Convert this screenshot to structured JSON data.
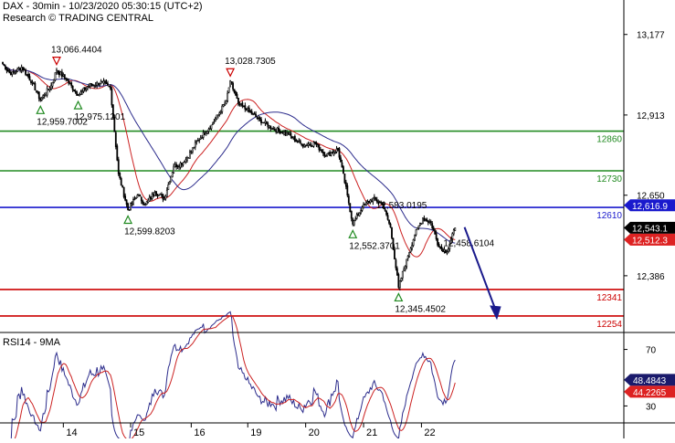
{
  "header": {
    "title": "DAX - 30min - 10/23/2020 05:30:15 (UTC+2)",
    "source": "Research © TRADING CENTRAL"
  },
  "chart_data": [
    {
      "type": "candlestick",
      "title": "DAX - 30min - 10/23/2020 05:30:15 (UTC+2)",
      "ylim": [
        12200,
        13290
      ],
      "y_ticks": [
        "13,177",
        "12,913",
        "12,650",
        "12,386"
      ],
      "x_ticks": [
        "14",
        "15",
        "16",
        "19",
        "20",
        "21",
        "22"
      ],
      "levels": [
        {
          "label": "12860",
          "value": 12860,
          "color": "#228b22"
        },
        {
          "label": "12730",
          "value": 12730,
          "color": "#228b22"
        },
        {
          "label": "12610",
          "value": 12610,
          "color": "#1a1acd"
        },
        {
          "label": "12341",
          "value": 12341,
          "color": "#cc0000"
        },
        {
          "label": "12254",
          "value": 12254,
          "color": "#cc0000"
        }
      ],
      "price_tags": [
        {
          "label": "12,616.9",
          "value": 12616.9,
          "bg": "#1a1acd",
          "fg": "#ffffff"
        },
        {
          "label": "12,543.1",
          "value": 12543.1,
          "bg": "#000000",
          "fg": "#ffffff"
        },
        {
          "label": "12,512.3",
          "value": 12512.3,
          "bg": "#dd2222",
          "fg": "#ffffff"
        }
      ],
      "annotations": [
        {
          "text": "13,066.4404",
          "i": 40,
          "value": 13066.4404,
          "marker": "down"
        },
        {
          "text": "12,959.7002",
          "i": 28,
          "value": 12959.7002,
          "marker": "up"
        },
        {
          "text": "12,975.1201",
          "i": 56,
          "value": 12975.1201,
          "marker": "up"
        },
        {
          "text": "13,028.7305",
          "i": 169,
          "value": 13028.7305,
          "marker": "down"
        },
        {
          "text": "12,599.8203",
          "i": 93,
          "value": 12599.8203,
          "marker": "up"
        },
        {
          "text": "12,583.0195",
          "i": 280,
          "value": 12583.0195,
          "marker": "none"
        },
        {
          "text": "12,552.3701",
          "i": 260,
          "value": 12552.3701,
          "marker": "up"
        },
        {
          "text": "12,458.6104",
          "i": 330,
          "value": 12458.6104,
          "marker": "none"
        },
        {
          "text": "12,345.4502",
          "i": 294,
          "value": 12345.4502,
          "marker": "up"
        }
      ],
      "forecast_arrow": {
        "from": {
          "i": 343,
          "value": 12545
        },
        "to": {
          "i": 367,
          "value": 12245
        }
      },
      "pivots": [
        {
          "i": 0,
          "value": 13080
        },
        {
          "i": 6,
          "value": 13045
        },
        {
          "i": 14,
          "value": 13070
        },
        {
          "i": 22,
          "value": 13020
        },
        {
          "i": 28,
          "value": 12962
        },
        {
          "i": 36,
          "value": 13010
        },
        {
          "i": 40,
          "value": 13060
        },
        {
          "i": 47,
          "value": 13030
        },
        {
          "i": 56,
          "value": 12978
        },
        {
          "i": 64,
          "value": 13010
        },
        {
          "i": 74,
          "value": 13020
        },
        {
          "i": 80,
          "value": 13000
        },
        {
          "i": 86,
          "value": 12720
        },
        {
          "i": 93,
          "value": 12602
        },
        {
          "i": 100,
          "value": 12650
        },
        {
          "i": 106,
          "value": 12620
        },
        {
          "i": 113,
          "value": 12660
        },
        {
          "i": 120,
          "value": 12640
        },
        {
          "i": 127,
          "value": 12745
        },
        {
          "i": 135,
          "value": 12760
        },
        {
          "i": 145,
          "value": 12830
        },
        {
          "i": 155,
          "value": 12880
        },
        {
          "i": 161,
          "value": 12920
        },
        {
          "i": 166,
          "value": 12960
        },
        {
          "i": 169,
          "value": 13025
        },
        {
          "i": 175,
          "value": 12950
        },
        {
          "i": 181,
          "value": 12930
        },
        {
          "i": 190,
          "value": 12900
        },
        {
          "i": 200,
          "value": 12870
        },
        {
          "i": 212,
          "value": 12850
        },
        {
          "i": 222,
          "value": 12815
        },
        {
          "i": 232,
          "value": 12820
        },
        {
          "i": 240,
          "value": 12780
        },
        {
          "i": 249,
          "value": 12800
        },
        {
          "i": 256,
          "value": 12650
        },
        {
          "i": 260,
          "value": 12555
        },
        {
          "i": 267,
          "value": 12610
        },
        {
          "i": 275,
          "value": 12640
        },
        {
          "i": 282,
          "value": 12620
        },
        {
          "i": 288,
          "value": 12545
        },
        {
          "i": 294,
          "value": 12348
        },
        {
          "i": 300,
          "value": 12440
        },
        {
          "i": 306,
          "value": 12520
        },
        {
          "i": 312,
          "value": 12575
        },
        {
          "i": 318,
          "value": 12560
        },
        {
          "i": 324,
          "value": 12480
        },
        {
          "i": 330,
          "value": 12465
        },
        {
          "i": 336,
          "value": 12543
        }
      ],
      "series": [
        {
          "name": "",
          "type": "ma",
          "color": "#cc2222",
          "period": 20
        },
        {
          "name": "",
          "type": "ma",
          "color": "#2c2c8c",
          "period": 50
        }
      ]
    },
    {
      "type": "line",
      "title": "RSI14 - 9MA",
      "ylim": [
        18,
        82
      ],
      "y_ticks": [
        "70",
        "30"
      ],
      "rsi_value_label": "48.4843",
      "ma_value_label": "44.2265",
      "series": [
        {
          "name": "RSI14",
          "color": "#2c2c8c",
          "period": 14
        },
        {
          "name": "9MA",
          "color": "#cc2222",
          "period": 9
        }
      ]
    }
  ]
}
